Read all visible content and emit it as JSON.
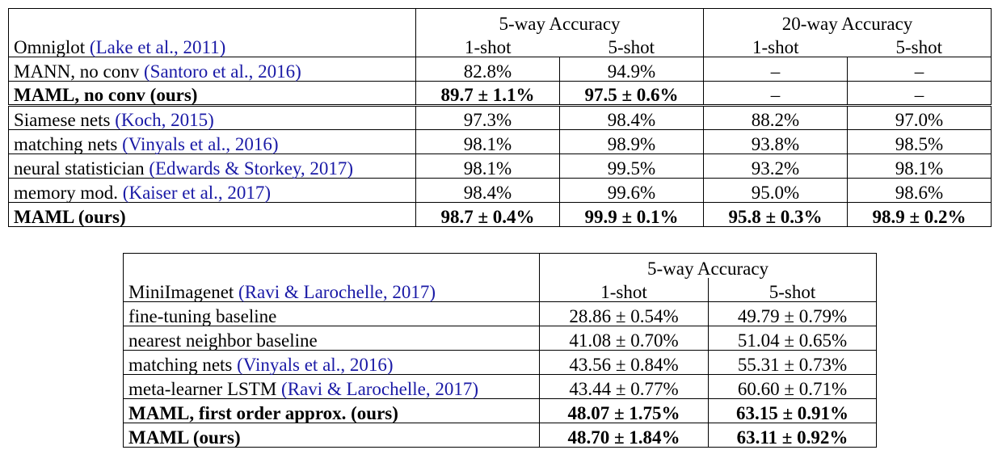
{
  "omniglot": {
    "header": {
      "group_5way": "5-way Accuracy",
      "group_20way": "20-way Accuracy",
      "dataset_name": "Omniglot",
      "dataset_cite": "(Lake et al., 2011)",
      "col_1shot_a": "1-shot",
      "col_5shot_a": "5-shot",
      "col_1shot_b": "1-shot",
      "col_5shot_b": "5-shot"
    },
    "rows": [
      {
        "method": "MANN, no conv ",
        "cite": "(Santoro et al., 2016)",
        "v1": "82.8%",
        "v2": "94.9%",
        "v3": "–",
        "v4": "–"
      },
      {
        "method": "MAML, no conv (ours)",
        "cite": "",
        "v1": "89.7 ± 1.1%",
        "v2": "97.5 ± 0.6%",
        "v3": "–",
        "v4": "–"
      },
      {
        "method": "Siamese nets ",
        "cite": "(Koch, 2015)",
        "v1": "97.3%",
        "v2": "98.4%",
        "v3": "88.2%",
        "v4": "97.0%"
      },
      {
        "method": "matching nets ",
        "cite": "(Vinyals et al., 2016)",
        "v1": "98.1%",
        "v2": "98.9%",
        "v3": "93.8%",
        "v4": "98.5%"
      },
      {
        "method": "neural statistician ",
        "cite": "(Edwards & Storkey, 2017)",
        "v1": "98.1%",
        "v2": "99.5%",
        "v3": "93.2%",
        "v4": "98.1%"
      },
      {
        "method": "memory mod. ",
        "cite": "(Kaiser et al., 2017)",
        "v1": "98.4%",
        "v2": "99.6%",
        "v3": "95.0%",
        "v4": "98.6%"
      },
      {
        "method": "MAML (ours)",
        "cite": "",
        "v1": "98.7 ± 0.4%",
        "v2": "99.9 ± 0.1%",
        "v3": "95.8 ± 0.3%",
        "v4": "98.9 ± 0.2%"
      }
    ]
  },
  "miniimagenet": {
    "header": {
      "group_5way": "5-way Accuracy",
      "dataset_name": "MiniImagenet",
      "dataset_cite": "(Ravi & Larochelle, 2017)",
      "col_1shot": "1-shot",
      "col_5shot": "5-shot"
    },
    "rows": [
      {
        "method": "fine-tuning baseline",
        "cite": "",
        "v1": "28.86 ± 0.54%",
        "v2": "49.79 ± 0.79%"
      },
      {
        "method": "nearest neighbor baseline",
        "cite": "",
        "v1": "41.08 ± 0.70%",
        "v2": "51.04 ± 0.65%"
      },
      {
        "method": "matching nets ",
        "cite": "(Vinyals et al., 2016)",
        "v1": "43.56 ± 0.84%",
        "v2": "55.31 ± 0.73%"
      },
      {
        "method": "meta-learner LSTM ",
        "cite": "(Ravi & Larochelle, 2017)",
        "v1": "43.44 ± 0.77%",
        "v2": "60.60 ± 0.71%"
      },
      {
        "method": "MAML, first order approx. (ours)",
        "cite": "",
        "v1": "48.07 ± 1.75%",
        "v2": "63.15 ± 0.91%"
      },
      {
        "method": "MAML (ours)",
        "cite": "",
        "v1": "48.70 ± 1.84%",
        "v2": "63.11 ± 0.92%"
      }
    ]
  },
  "colors": {
    "citation_link": "#1a1aa6",
    "text": "#000000",
    "background": "#ffffff"
  }
}
